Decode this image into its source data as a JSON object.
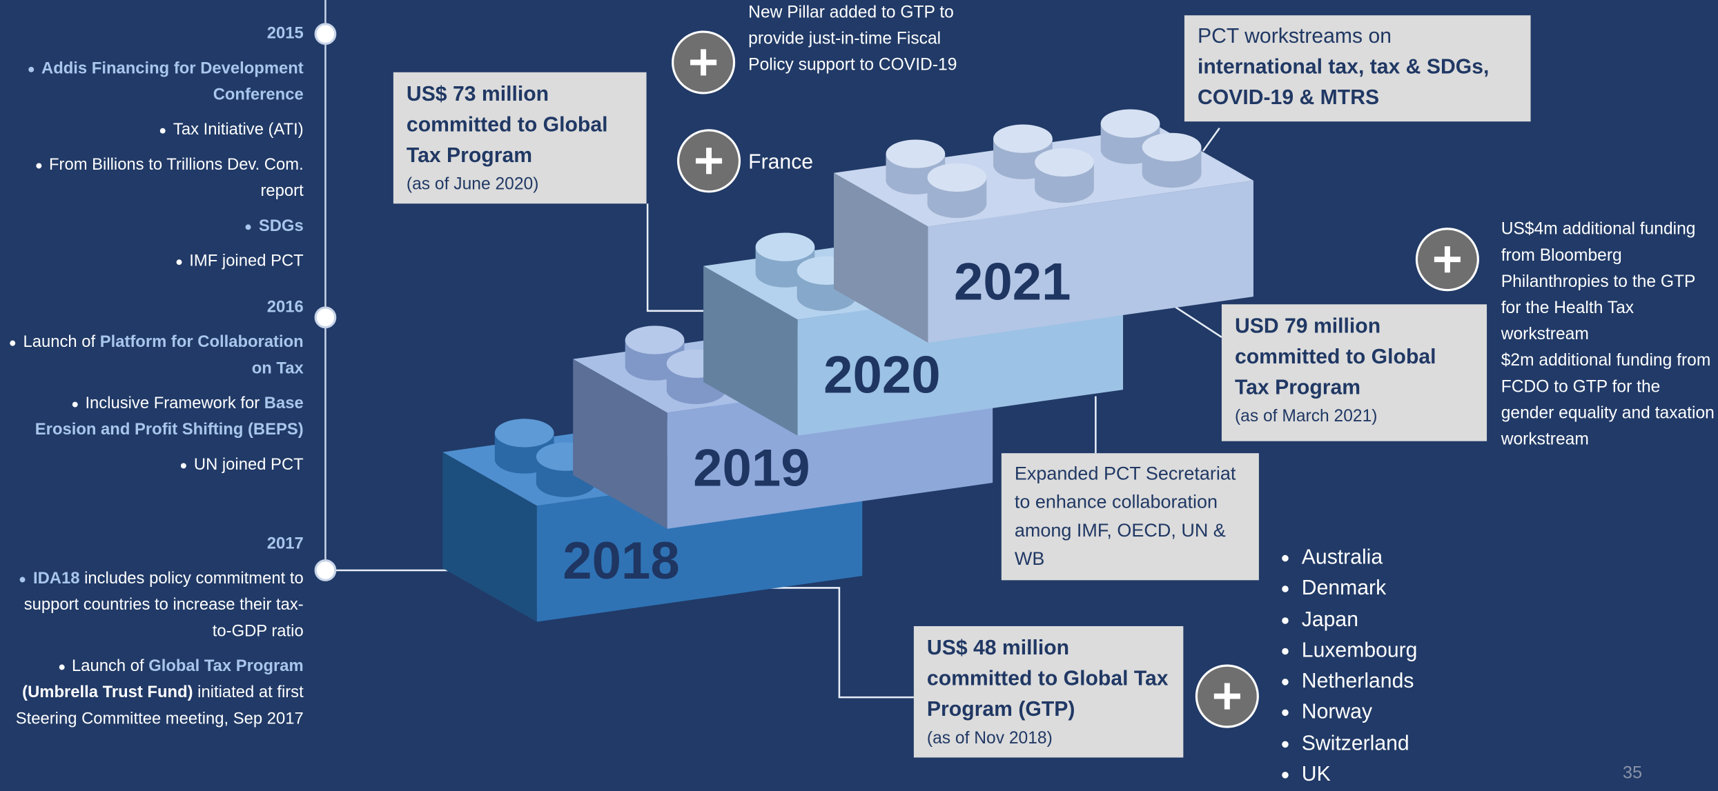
{
  "timeline": [
    {
      "year": "2015",
      "items": [
        [
          {
            "text": "Addis Financing for Development Conference",
            "highlight": true
          }
        ],
        [
          {
            "text": "Tax Initiative (ATI)"
          }
        ],
        [
          {
            "text": "From Billions to Trillions Dev. Com. report"
          }
        ],
        [
          {
            "text": "SDGs",
            "highlight": true
          }
        ],
        [
          {
            "text": "IMF joined PCT"
          }
        ]
      ]
    },
    {
      "year": "2016",
      "items": [
        [
          {
            "text": "Launch of "
          },
          {
            "text": "Platform for Collaboration on Tax",
            "highlight": true
          }
        ],
        [
          {
            "text": "Inclusive Framework for "
          },
          {
            "text": "Base Erosion and Profit Shifting (BEPS)",
            "highlight": true
          }
        ],
        [
          {
            "text": "UN joined PCT"
          }
        ]
      ]
    },
    {
      "year": "2017",
      "items": [
        [
          {
            "text": "IDA18",
            "highlight": true
          },
          {
            "text": " includes policy commitment to support countries to increase their tax-to-GDP ratio"
          }
        ],
        [
          {
            "text": "Launch of "
          },
          {
            "text": "Global Tax Program",
            "highlight": true
          },
          {
            "text": " (Umbrella Trust Fund)",
            "bold": true
          },
          {
            "text": " initiated at first Steering Committee meeting, Sep 2017"
          }
        ]
      ]
    }
  ],
  "bricks": [
    {
      "year": "2018"
    },
    {
      "year": "2019"
    },
    {
      "year": "2020"
    },
    {
      "year": "2021"
    }
  ],
  "callouts": {
    "gtp_2018": {
      "title": "US$ 48 million committed to Global Tax Program (GTP)",
      "note": "(as of Nov 2018)"
    },
    "gtp_2020": {
      "title": "US$ 73 million committed to Global Tax Program",
      "note": "(as of June 2020)"
    },
    "gtp_2021": {
      "title": "USD 79 million committed to Global Tax Program",
      "note": "(as of March 2021)"
    },
    "pct_workstreams": {
      "lead": "PCT workstreams on",
      "emphasis": "international tax, tax & SDGs, COVID-19 & MTRS"
    },
    "pct_secretariat": {
      "text": "Expanded PCT Secretariat to enhance collaboration among IMF, OECD, UN & WB"
    }
  },
  "additions": {
    "new_pillar": "New Pillar added to GTP to provide just-in-time Fiscal  Policy support to COVID-19",
    "france": "France",
    "funding": [
      "US$4m additional funding from Bloomberg Philanthropies to the GTP for the Health Tax workstream",
      "$2m additional funding from FCDO to GTP for the gender equality and taxation workstream"
    ],
    "donors": [
      "Australia",
      "Denmark",
      "Japan",
      "Luxembourg",
      "Netherlands",
      "Norway",
      "Switzerland",
      "UK"
    ]
  },
  "page_number": "35"
}
